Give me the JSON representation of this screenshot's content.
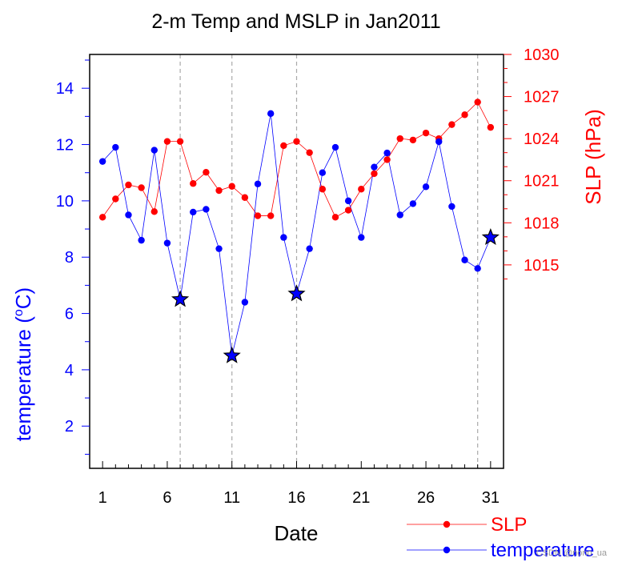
{
  "chart_data": {
    "type": "line",
    "title": "2-m Temp and MSLP in Jan2011",
    "xlabel": "Date",
    "ylabel_left": "temperature (°C)",
    "ylabel_left_parts": {
      "pre": "temperature (",
      "sup": "o",
      "post": "C)"
    },
    "ylabel_right": "SLP (hPa)",
    "x": [
      1,
      2,
      3,
      4,
      5,
      6,
      7,
      8,
      9,
      10,
      11,
      12,
      13,
      14,
      15,
      16,
      17,
      18,
      19,
      20,
      21,
      22,
      23,
      24,
      25,
      26,
      27,
      28,
      29,
      30,
      31
    ],
    "xlim": [
      0,
      32
    ],
    "x_ticks": [
      1,
      6,
      11,
      16,
      21,
      26,
      31
    ],
    "x_tick_labels": [
      "1",
      "6",
      "11",
      "16",
      "21",
      "26",
      "31"
    ],
    "vertical_reference_lines": [
      7,
      11,
      16,
      30
    ],
    "left_axis": {
      "ylim": [
        0.5,
        15.2
      ],
      "ticks": [
        2,
        4,
        6,
        8,
        10,
        12,
        14
      ],
      "tick_labels": [
        "2",
        "4",
        "6",
        "8",
        "10",
        "12",
        "14"
      ],
      "color": "#0000ff"
    },
    "right_axis": {
      "ylim": [
        1000.5,
        1030
      ],
      "ticks": [
        1015,
        1018,
        1021,
        1024,
        1027,
        1030
      ],
      "tick_labels": [
        "1015",
        "1018",
        "1021",
        "1024",
        "1027",
        "1030"
      ],
      "color": "#ff0000"
    },
    "series": [
      {
        "name": "SLP",
        "axis": "right",
        "color": "#ff0000",
        "values": [
          1018.4,
          1019.7,
          1020.7,
          1020.5,
          1018.8,
          1023.8,
          1023.8,
          1020.8,
          1021.6,
          1020.3,
          1020.6,
          1019.8,
          1018.5,
          1018.5,
          1023.5,
          1023.8,
          1023.0,
          1020.4,
          1018.4,
          1018.9,
          1020.4,
          1021.5,
          1022.5,
          1024.0,
          1023.9,
          1024.4,
          1024.0,
          1025.0,
          1025.7,
          1026.6,
          1024.8
        ]
      },
      {
        "name": "temperature",
        "axis": "left",
        "color": "#0000ff",
        "values": [
          11.4,
          11.9,
          9.5,
          8.6,
          11.8,
          8.5,
          6.5,
          9.6,
          9.7,
          8.3,
          4.5,
          6.4,
          10.6,
          13.1,
          8.7,
          6.7,
          8.3,
          11.0,
          11.9,
          10.0,
          8.7,
          11.2,
          11.7,
          9.5,
          9.9,
          10.5,
          12.1,
          9.8,
          7.9,
          7.6,
          8.7
        ],
        "star_markers_at_x": [
          7,
          11,
          16,
          31
        ]
      }
    ],
    "legend": {
      "placement": "bottom-right",
      "entries": [
        {
          "label": "SLP",
          "color": "#ff0000"
        },
        {
          "label": "temperature",
          "color": "#0000ff"
        }
      ]
    },
    "grid": false
  },
  "watermark": "CSDN @nono_ua"
}
